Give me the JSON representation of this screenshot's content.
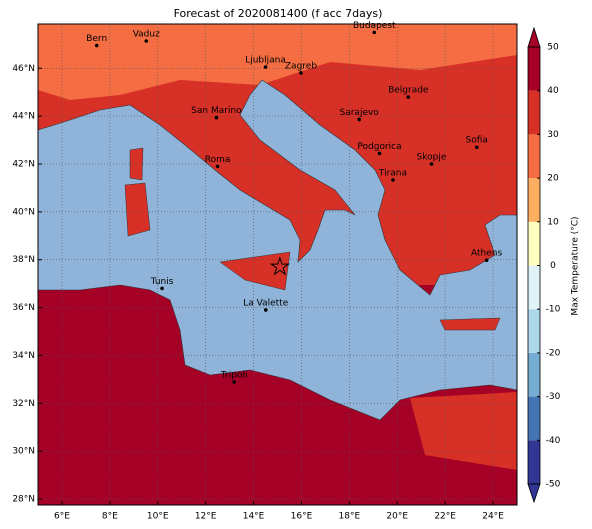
{
  "title": "Forecast of 2020081400 (f acc 7days)",
  "map": {
    "lonlim": [
      5.0,
      25.0
    ],
    "latlim": [
      27.75,
      47.85
    ],
    "lonticks": [
      {
        "value": 6,
        "label": "6°E"
      },
      {
        "value": 8,
        "label": "8°E"
      },
      {
        "value": 10,
        "label": "10°E"
      },
      {
        "value": 12,
        "label": "12°E"
      },
      {
        "value": 14,
        "label": "14°E"
      },
      {
        "value": 16,
        "label": "16°E"
      },
      {
        "value": 18,
        "label": "18°E"
      },
      {
        "value": 20,
        "label": "20°E"
      },
      {
        "value": 22,
        "label": "22°E"
      },
      {
        "value": 24,
        "label": "24°E"
      }
    ],
    "latticks": [
      {
        "value": 28,
        "label": "28°N"
      },
      {
        "value": 30,
        "label": "30°N"
      },
      {
        "value": 32,
        "label": "32°N"
      },
      {
        "value": 34,
        "label": "34°N"
      },
      {
        "value": 36,
        "label": "36°N"
      },
      {
        "value": 38,
        "label": "38°N"
      },
      {
        "value": 40,
        "label": "40°N"
      },
      {
        "value": 42,
        "label": "42°N"
      },
      {
        "value": 44,
        "label": "44°N"
      },
      {
        "value": 46,
        "label": "46°N"
      }
    ],
    "grid": true
  },
  "cities": [
    {
      "name": "Bern",
      "lon": 7.45,
      "lat": 46.95
    },
    {
      "name": "Vaduz",
      "lon": 9.52,
      "lat": 47.14
    },
    {
      "name": "Budapest",
      "lon": 19.04,
      "lat": 47.5
    },
    {
      "name": "Ljubljana",
      "lon": 14.5,
      "lat": 46.05
    },
    {
      "name": "Zagreb",
      "lon": 15.98,
      "lat": 45.81
    },
    {
      "name": "Belgrade",
      "lon": 20.46,
      "lat": 44.8
    },
    {
      "name": "San Marino",
      "lon": 12.45,
      "lat": 43.94
    },
    {
      "name": "Sarajevo",
      "lon": 18.41,
      "lat": 43.86
    },
    {
      "name": "Podgorica",
      "lon": 19.26,
      "lat": 42.44
    },
    {
      "name": "Skopje",
      "lon": 21.43,
      "lat": 42.0
    },
    {
      "name": "Sofia",
      "lon": 23.32,
      "lat": 42.7
    },
    {
      "name": "Roma",
      "lon": 12.5,
      "lat": 41.9
    },
    {
      "name": "Tirana",
      "lon": 19.82,
      "lat": 41.33
    },
    {
      "name": "Athens",
      "lon": 23.73,
      "lat": 37.98
    },
    {
      "name": "Tunis",
      "lon": 10.18,
      "lat": 36.8
    },
    {
      "name": "La Valette",
      "lon": 14.51,
      "lat": 35.9
    },
    {
      "name": "Tripoli",
      "lon": 13.19,
      "lat": 32.89
    }
  ],
  "marker": {
    "lon": 15.1,
    "lat": 37.7
  },
  "colorbar": {
    "label": "Max Temperature (°C)",
    "lim": [
      -50,
      50
    ],
    "ticks": [
      -50,
      -40,
      -30,
      -20,
      -10,
      0,
      10,
      20,
      30,
      40,
      50
    ],
    "colors": [
      "#313695",
      "#4575b4",
      "#74add1",
      "#abd9e9",
      "#e0f3f8",
      "#ffffbf",
      "#fdae61",
      "#f46d43",
      "#d73027",
      "#a50026"
    ],
    "extend": "both"
  }
}
